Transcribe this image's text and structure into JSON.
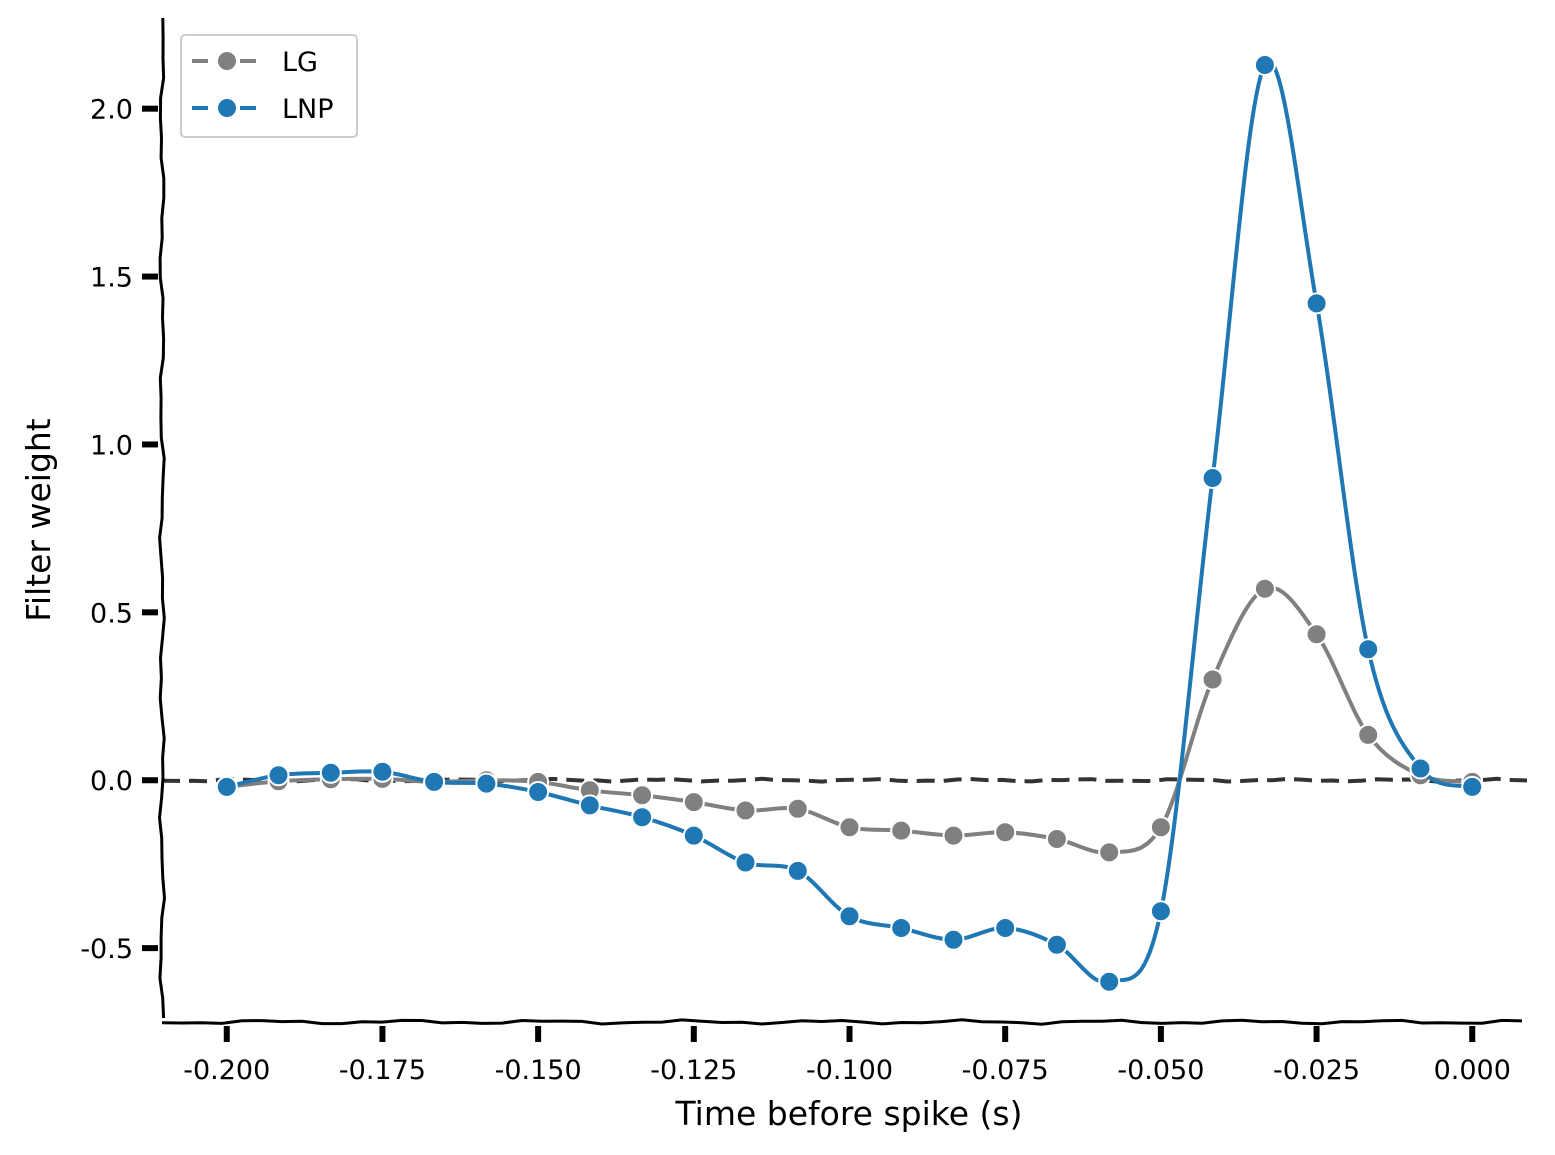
{
  "chart_data": {
    "type": "line",
    "title": "",
    "xlabel": "Time before spike (s)",
    "ylabel": "Filter weight",
    "xlim": [
      -0.2104,
      0.0104
    ],
    "ylim": [
      -0.72,
      2.27
    ],
    "xticks": [
      -0.2,
      -0.175,
      -0.15,
      -0.125,
      -0.1,
      -0.075,
      -0.05,
      -0.025,
      0.0
    ],
    "xtick_labels": [
      "-0.200",
      "-0.175",
      "-0.150",
      "-0.125",
      "-0.100",
      "-0.075",
      "-0.050",
      "-0.025",
      "0.000"
    ],
    "yticks": [
      -0.5,
      0.0,
      0.5,
      1.0,
      1.5,
      2.0
    ],
    "ytick_labels": [
      "-0.5",
      "0.0",
      "0.5",
      "1.0",
      "1.5",
      "2.0"
    ],
    "grid": false,
    "legend_position": "top-left",
    "reference_line": {
      "y": 0.0,
      "style": "dashed",
      "color": "#333333"
    },
    "x": [
      -0.2,
      -0.1917,
      -0.1833,
      -0.175,
      -0.1667,
      -0.1583,
      -0.15,
      -0.1417,
      -0.1333,
      -0.125,
      -0.1167,
      -0.1083,
      -0.1,
      -0.0917,
      -0.0833,
      -0.075,
      -0.0667,
      -0.0583,
      -0.05,
      -0.0417,
      -0.0333,
      -0.025,
      -0.0167,
      -0.0083,
      0.0
    ],
    "series": [
      {
        "name": "LG",
        "color": "#808080",
        "values": [
          -0.02,
          -0.003,
          0.003,
          0.004,
          -0.005,
          0.0,
          -0.005,
          -0.03,
          -0.045,
          -0.065,
          -0.09,
          -0.085,
          -0.14,
          -0.15,
          -0.165,
          -0.155,
          -0.175,
          -0.215,
          -0.14,
          0.3,
          0.57,
          0.435,
          0.135,
          0.015,
          -0.005
        ]
      },
      {
        "name": "LNP",
        "color": "#1f77b4",
        "values": [
          -0.02,
          0.015,
          0.022,
          0.025,
          -0.005,
          -0.01,
          -0.035,
          -0.075,
          -0.11,
          -0.165,
          -0.245,
          -0.27,
          -0.405,
          -0.44,
          -0.475,
          -0.44,
          -0.49,
          -0.6,
          -0.39,
          0.9,
          2.13,
          1.42,
          0.39,
          0.035,
          -0.02
        ]
      }
    ]
  }
}
